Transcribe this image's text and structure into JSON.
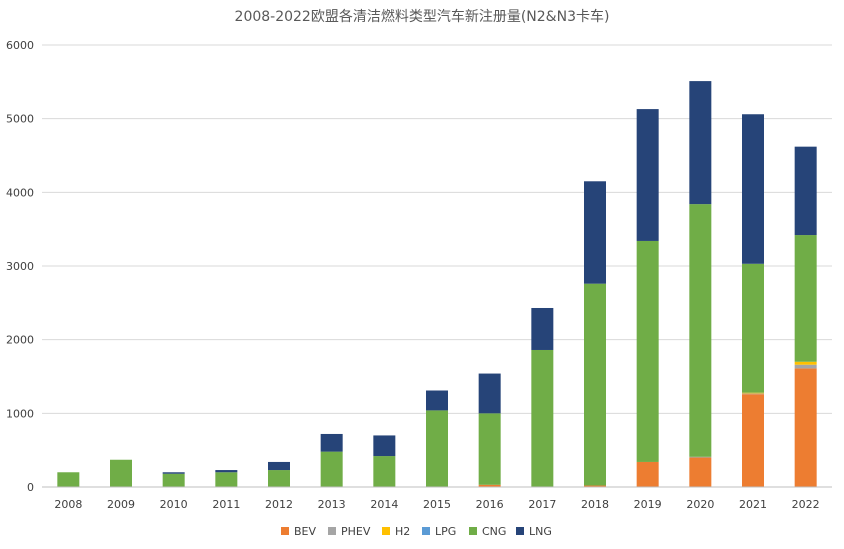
{
  "chart_data": {
    "type": "bar",
    "stacked": true,
    "title": "2008-2022欧盟各清洁燃料类型汽车新注册量(N2&N3卡车)",
    "xlabel": "",
    "ylabel": "",
    "ylim": [
      0,
      6000
    ],
    "yticks": [
      0,
      1000,
      2000,
      3000,
      4000,
      5000,
      6000
    ],
    "grid": true,
    "legend_position": "bottom",
    "categories": [
      "2008",
      "2009",
      "2010",
      "2011",
      "2012",
      "2013",
      "2014",
      "2015",
      "2016",
      "2017",
      "2018",
      "2019",
      "2020",
      "2021",
      "2022"
    ],
    "series": [
      {
        "name": "BEV",
        "color": "#ed7d31",
        "values": [
          0,
          0,
          0,
          0,
          0,
          0,
          0,
          0,
          30,
          0,
          20,
          340,
          400,
          1260,
          1610
        ]
      },
      {
        "name": "PHEV",
        "color": "#a5a5a5",
        "values": [
          0,
          0,
          0,
          0,
          0,
          0,
          0,
          0,
          0,
          0,
          0,
          0,
          10,
          10,
          50
        ]
      },
      {
        "name": "H2",
        "color": "#ffc000",
        "values": [
          0,
          0,
          0,
          0,
          0,
          0,
          0,
          0,
          0,
          0,
          0,
          0,
          0,
          10,
          40
        ]
      },
      {
        "name": "LPG",
        "color": "#5b9bd5",
        "values": [
          0,
          0,
          0,
          0,
          0,
          0,
          0,
          0,
          0,
          0,
          0,
          0,
          0,
          0,
          0
        ]
      },
      {
        "name": "CNG",
        "color": "#70ad47",
        "values": [
          200,
          370,
          180,
          200,
          230,
          480,
          420,
          1040,
          970,
          1860,
          2740,
          3000,
          3430,
          1750,
          1720
        ]
      },
      {
        "name": "LNG",
        "color": "#264478",
        "values": [
          0,
          0,
          20,
          30,
          110,
          240,
          280,
          270,
          540,
          570,
          1390,
          1790,
          1670,
          2030,
          1200
        ]
      }
    ]
  }
}
